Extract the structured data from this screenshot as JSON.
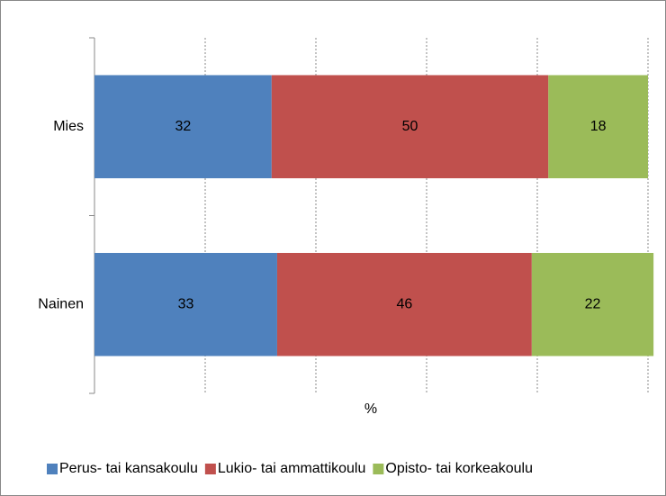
{
  "chart_data": {
    "type": "stacked_barh",
    "categories": [
      "Mies",
      "Nainen"
    ],
    "series": [
      {
        "name": "Perus- tai kansakoulu",
        "color": "#4f81bd",
        "values": [
          32,
          33
        ]
      },
      {
        "name": "Lukio- tai ammattikoulu",
        "color": "#c0504d",
        "values": [
          50,
          46
        ]
      },
      {
        "name": "Opisto- tai korkeakoulu",
        "color": "#9bbb59",
        "values": [
          18,
          22
        ]
      }
    ],
    "xlabel": "%",
    "xlim": [
      0,
      100
    ],
    "xticks": [
      0,
      20,
      40,
      60,
      80,
      100
    ],
    "grid": true,
    "legend": "bottom"
  }
}
